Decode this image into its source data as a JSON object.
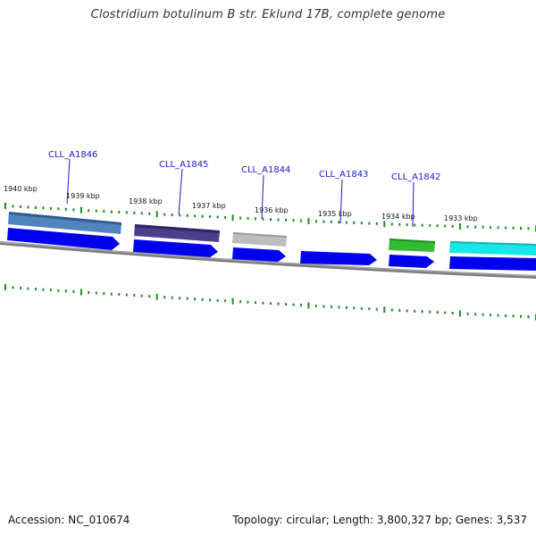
{
  "title": "Clostridium botulinum B str. Eklund 17B, complete genome",
  "footer": {
    "accession": "Accession: NC_010674",
    "stats": "Topology: circular; Length: 3,800,327 bp; Genes: 3,537"
  },
  "scale": {
    "labels": [
      "1940 kbp",
      "1939 kbp",
      "1938 kbp",
      "1937 kbp",
      "1936 kbp",
      "1935 kbp",
      "1934 kbp",
      "1933 kbp"
    ]
  },
  "genes": [
    {
      "name": "CLL_A1846"
    },
    {
      "name": "CLL_A1845"
    },
    {
      "name": "CLL_A1844"
    },
    {
      "name": "CLL_A1843"
    },
    {
      "name": "CLL_A1842"
    }
  ],
  "colors": {
    "cds": "#0000ee",
    "backbone": "#888888",
    "ticks": "#228b22",
    "label_text": "#1a1acc",
    "cog_steelblue": "#4f84bd",
    "cog_purple": "#4b3f8c",
    "cog_gray": "#bdbdbd",
    "cog_green": "#33bb33",
    "cog_cyan": "#19e6e6"
  }
}
